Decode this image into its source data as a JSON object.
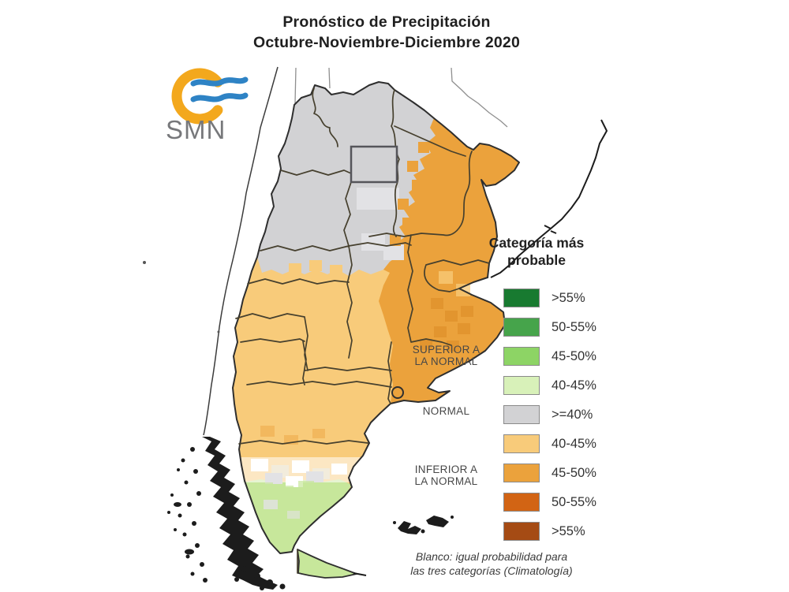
{
  "title": {
    "lines": [
      "Pronóstico de Precipitación",
      "Octubre-Noviembre-Diciembre 2020"
    ]
  },
  "logo": {
    "label": "SMN",
    "ring_color": "#F3A81D",
    "wave_color": "#2E83C5",
    "label_color": "#77787B"
  },
  "legend": {
    "title": "Categoría más probable",
    "groups": [
      {
        "id": "superior",
        "lines": [
          "SUPERIOR A",
          "LA NORMAL"
        ]
      },
      {
        "id": "normal",
        "lines": [
          "NORMAL"
        ]
      },
      {
        "id": "inferior",
        "lines": [
          "INFERIOR A",
          "LA NORMAL"
        ]
      }
    ],
    "rows": [
      {
        "category": "superior_gt55",
        "label": ">55%",
        "color": "#187A30"
      },
      {
        "category": "superior_50_55",
        "label": "50-55%",
        "color": "#46A44B"
      },
      {
        "category": "superior_45_50",
        "label": "45-50%",
        "color": "#8DD465"
      },
      {
        "category": "superior_40_45",
        "label": "40-45%",
        "color": "#D8F1B9"
      },
      {
        "category": "normal",
        "label": ">=40%",
        "color": "#D2D2D4"
      },
      {
        "category": "inferior_40_45",
        "label": "40-45%",
        "color": "#F8CB7A"
      },
      {
        "category": "inferior_45_50",
        "label": "45-50%",
        "color": "#EBA23C"
      },
      {
        "category": "inferior_50_55",
        "label": "50-55%",
        "color": "#D26414"
      },
      {
        "category": "inferior_gt55",
        "label": ">55%",
        "color": "#A54B14"
      }
    ]
  },
  "map": {
    "outline_color": "#2E2E2E",
    "province_border_color": "#46402E",
    "neighbor_border_color": "#8F8F8F",
    "coast_dark_color": "#1C1C1C",
    "shades": {
      "normal_light": "#E2E2E5",
      "inferior_dark_cell": "#E2952F",
      "map_green": "#C7E79B",
      "white": "#FFFFFF",
      "transition": "#F2ECDC"
    }
  },
  "footnote": {
    "lines": [
      "Blanco: igual probabilidad para",
      "las tres categorías (Climatología)"
    ]
  }
}
